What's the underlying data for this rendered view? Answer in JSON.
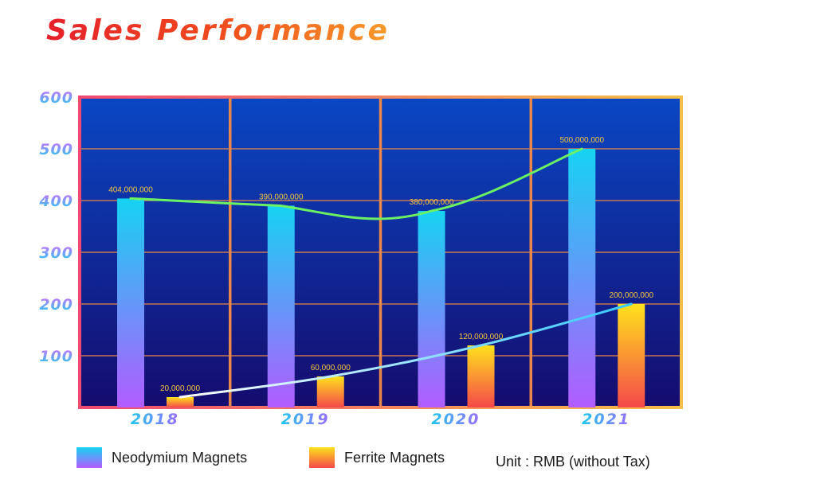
{
  "title": "Sales Performance",
  "unit_text": "Unit : RMB (without Tax)",
  "chart_data": {
    "type": "bar",
    "title": "Sales Performance",
    "categories": [
      "2018",
      "2019",
      "2020",
      "2021"
    ],
    "ylim": [
      0,
      600
    ],
    "yticks": [
      100,
      200,
      300,
      400,
      500,
      600
    ],
    "y_tick_scale": 1000000,
    "grid": true,
    "legend_placement": "bottom",
    "series": [
      {
        "name": "Neodymium Magnets",
        "values": [
          404000000,
          390000000,
          380000000,
          500000000
        ],
        "labels": [
          "404,000,000",
          "390,000,000",
          "380,000,000",
          "500,000,000"
        ],
        "color_top": "#16d3f2",
        "color_bottom": "#b25cff"
      },
      {
        "name": "Ferrite Magnets",
        "values": [
          20000000,
          60000000,
          120000000,
          200000000
        ],
        "labels": [
          "20,000,000",
          "60,000,000",
          "120,000,000",
          "200,000,000"
        ],
        "color_top": "#ffe21c",
        "color_bottom": "#f4484a"
      }
    ],
    "colors": {
      "plot_bg_top": "#0a47c4",
      "plot_bg_bottom": "#150c6e",
      "grid": "#e9864a",
      "border_left": "#f04a72",
      "border_right": "#f5c04a",
      "neodymium_trend": "#6cf064",
      "ferrite_trend_start": "#ffffff",
      "ferrite_trend_end": "#36c8ff",
      "data_label": "#f5c53a"
    }
  },
  "legend": {
    "items": [
      {
        "label": "Neodymium Magnets",
        "icon": "gradient-swatch-blue-purple"
      },
      {
        "label": "Ferrite Magnets",
        "icon": "gradient-swatch-yellow-red"
      }
    ]
  }
}
